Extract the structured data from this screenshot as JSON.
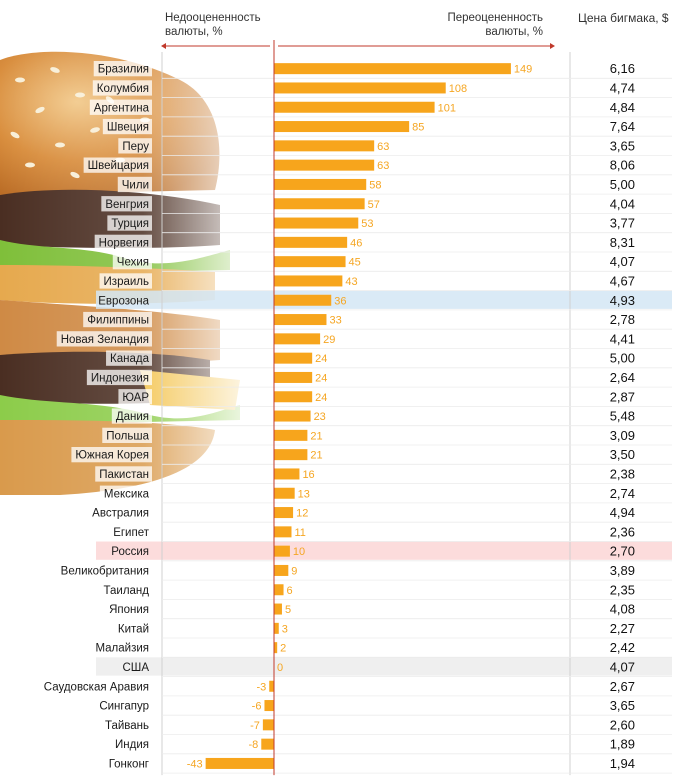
{
  "headers": {
    "undervalued": "Недооцененность валюты, %",
    "overvalued": "Переоцененность валюты, %",
    "price": "Цена бигмака, $"
  },
  "colors": {
    "bar": "#f7a51c",
    "label": "#f5a623",
    "eurozone_row": "#d4e6f5",
    "russia_row": "#fbd6d6",
    "usa_row": "#ececec",
    "axis": "#c0392b"
  },
  "chart_data": {
    "type": "bar",
    "orientation": "horizontal",
    "xlim": [
      -45,
      160
    ],
    "highlights": {
      "Еврозона": "blue",
      "Россия": "red",
      "США": "gray"
    },
    "categories": [
      "Бразилия",
      "Колумбия",
      "Аргентина",
      "Швеция",
      "Перу",
      "Швейцария",
      "Чили",
      "Венгрия",
      "Турция",
      "Норвегия",
      "Чехия",
      "Израиль",
      "Еврозона",
      "Филиппины",
      "Новая Зеландия",
      "Канада",
      "Индонезия",
      "ЮАР",
      "Дания",
      "Польша",
      "Южная Корея",
      "Пакистан",
      "Мексика",
      "Австралия",
      "Египет",
      "Россия",
      "Великобритания",
      "Таиланд",
      "Япония",
      "Китай",
      "Малайзия",
      "США",
      "Саудовская Аравия",
      "Сингапур",
      "Тайвань",
      "Индия",
      "Гонконг"
    ],
    "values": [
      149,
      108,
      101,
      85,
      63,
      63,
      58,
      57,
      53,
      46,
      45,
      43,
      36,
      33,
      29,
      24,
      24,
      24,
      23,
      21,
      21,
      16,
      13,
      12,
      11,
      10,
      9,
      6,
      5,
      3,
      2,
      0,
      -3,
      -6,
      -7,
      -8,
      -43
    ],
    "prices": [
      "6,16",
      "4,74",
      "4,84",
      "7,64",
      "3,65",
      "8,06",
      "5,00",
      "4,04",
      "3,77",
      "8,31",
      "4,07",
      "4,67",
      "4,93",
      "2,78",
      "4,41",
      "5,00",
      "2,64",
      "2,87",
      "5,48",
      "3,09",
      "3,50",
      "2,38",
      "2,74",
      "4,94",
      "2,36",
      "2,70",
      "3,89",
      "2,35",
      "4,08",
      "2,27",
      "2,42",
      "4,07",
      "2,67",
      "3,65",
      "2,60",
      "1,89",
      "1,94"
    ]
  }
}
